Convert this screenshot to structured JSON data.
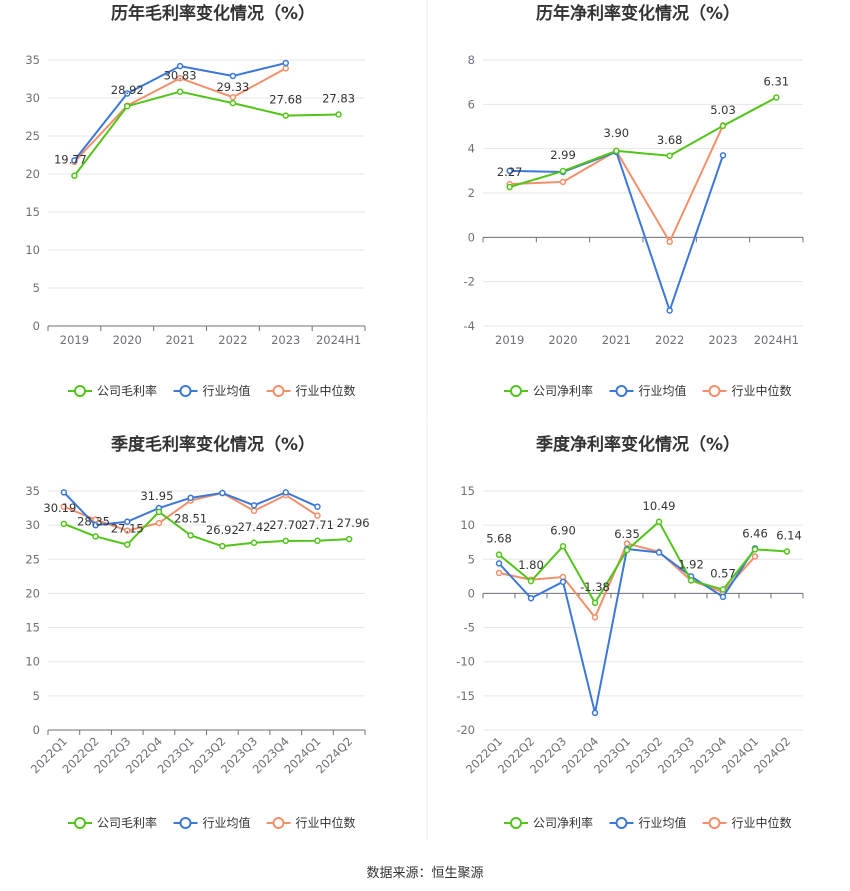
{
  "source_text": "数据来源：恒生聚源",
  "legend_colors": {
    "company": "#52c41a",
    "avg": "#3c78d8",
    "median": "#f2906c"
  },
  "chart_data": [
    {
      "type": "line",
      "title": "历年毛利率变化情况（%）",
      "categories": [
        "2019",
        "2020",
        "2021",
        "2022",
        "2023",
        "2024H1"
      ],
      "ylim": [
        0,
        35
      ],
      "yticks": [
        0,
        5,
        10,
        15,
        20,
        25,
        30,
        35
      ],
      "grid": true,
      "legend_position": "bottom",
      "series": [
        {
          "name": "公司毛利率",
          "key": "company",
          "values": [
            19.77,
            28.92,
            30.83,
            29.33,
            27.68,
            27.83
          ],
          "labels": [
            "19.77",
            "28.92",
            "30.83",
            "29.33",
            "27.68",
            "27.83"
          ]
        },
        {
          "name": "行业均值",
          "key": "avg",
          "values": [
            21.8,
            30.6,
            34.2,
            32.9,
            34.6,
            null
          ]
        },
        {
          "name": "行业中位数",
          "key": "median",
          "values": [
            21.6,
            29.0,
            32.6,
            30.1,
            33.9,
            null
          ]
        }
      ]
    },
    {
      "type": "line",
      "title": "历年净利率变化情况（%）",
      "categories": [
        "2019",
        "2020",
        "2021",
        "2022",
        "2023",
        "2024H1"
      ],
      "ylim": [
        -4,
        8
      ],
      "yticks": [
        -4,
        -2,
        0,
        2,
        4,
        6,
        8
      ],
      "grid": true,
      "legend_position": "bottom",
      "series": [
        {
          "name": "公司净利率",
          "key": "company",
          "values": [
            2.27,
            2.99,
            3.9,
            3.68,
            5.03,
            6.31
          ],
          "labels": [
            "2.27",
            "2.99",
            "3.90",
            "3.68",
            "5.03",
            "6.31"
          ]
        },
        {
          "name": "行业均值",
          "key": "avg",
          "values": [
            3.0,
            2.95,
            3.85,
            -3.3,
            3.7,
            null
          ]
        },
        {
          "name": "行业中位数",
          "key": "median",
          "values": [
            2.4,
            2.5,
            3.9,
            -0.2,
            5.05,
            null
          ]
        }
      ]
    },
    {
      "type": "line",
      "title": "季度毛利率变化情况（%）",
      "categories": [
        "2022Q1",
        "2022Q2",
        "2022Q3",
        "2022Q4",
        "2023Q1",
        "2023Q2",
        "2023Q3",
        "2023Q4",
        "2024Q1",
        "2024Q2"
      ],
      "ylim": [
        0,
        35
      ],
      "yticks": [
        0,
        5,
        10,
        15,
        20,
        25,
        30,
        35
      ],
      "grid": true,
      "legend_position": "bottom",
      "series": [
        {
          "name": "公司毛利率",
          "key": "company",
          "values": [
            30.19,
            28.35,
            27.15,
            31.95,
            28.51,
            26.92,
            27.42,
            27.7,
            27.71,
            27.96
          ],
          "labels": [
            "30.19",
            "28.35",
            "27.15",
            "31.95",
            "28.51",
            "26.92",
            "27.42",
            "27.70",
            "27.71",
            "27.96"
          ]
        },
        {
          "name": "行业均值",
          "key": "avg",
          "values": [
            34.8,
            30.0,
            30.5,
            32.5,
            34.0,
            34.7,
            32.9,
            34.8,
            32.7,
            null
          ]
        },
        {
          "name": "行业中位数",
          "key": "median",
          "values": [
            32.7,
            30.8,
            29.2,
            30.3,
            33.6,
            34.7,
            32.1,
            34.4,
            31.4,
            null
          ]
        }
      ]
    },
    {
      "type": "line",
      "title": "季度净利率变化情况（%）",
      "categories": [
        "2022Q1",
        "2022Q2",
        "2022Q3",
        "2022Q4",
        "2023Q1",
        "2023Q2",
        "2023Q3",
        "2023Q4",
        "2024Q1",
        "2024Q2"
      ],
      "ylim": [
        -20,
        15
      ],
      "yticks": [
        -20,
        -15,
        -10,
        -5,
        0,
        5,
        10,
        15
      ],
      "grid": true,
      "legend_position": "bottom",
      "series": [
        {
          "name": "公司净利率",
          "key": "company",
          "values": [
            5.68,
            1.8,
            6.9,
            -1.38,
            6.35,
            10.49,
            1.92,
            0.57,
            6.46,
            6.14
          ],
          "labels": [
            "5.68",
            "1.80",
            "6.90",
            "-1.38",
            "6.35",
            "10.49",
            "1.92",
            "0.57",
            "6.46",
            "6.14"
          ]
        },
        {
          "name": "行业均值",
          "key": "avg",
          "values": [
            4.4,
            -0.7,
            1.7,
            -17.5,
            6.5,
            6.0,
            2.5,
            -0.5,
            6.6,
            null
          ]
        },
        {
          "name": "行业中位数",
          "key": "median",
          "values": [
            3.0,
            2.0,
            2.4,
            -3.5,
            7.3,
            6.1,
            1.9,
            0.2,
            5.4,
            null
          ]
        }
      ]
    }
  ]
}
